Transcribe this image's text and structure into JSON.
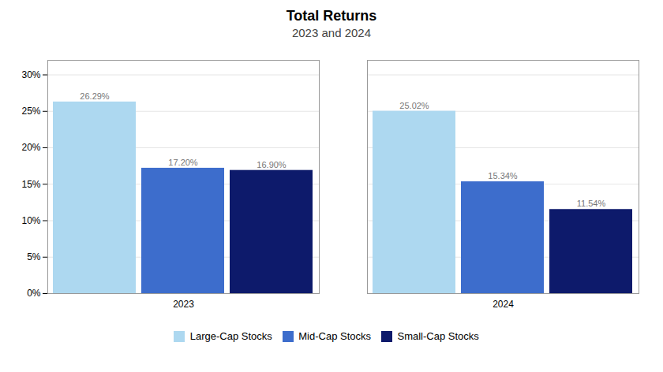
{
  "chart_data": {
    "type": "bar",
    "title": "Total Returns",
    "subtitle": "2023 and 2024",
    "categories": [
      "2023",
      "2024"
    ],
    "series": [
      {
        "name": "Large-Cap Stocks",
        "color": "#add8f0",
        "values": [
          26.29,
          25.02
        ],
        "value_labels": [
          "26.29%",
          "25.02%"
        ]
      },
      {
        "name": "Mid-Cap Stocks",
        "color": "#3d6dcc",
        "values": [
          17.2,
          15.34
        ],
        "value_labels": [
          "17.20%",
          "15.34%"
        ]
      },
      {
        "name": "Small-Cap Stocks",
        "color": "#0d1a6b",
        "values": [
          16.9,
          11.54
        ],
        "value_labels": [
          "16.90%",
          "11.54%"
        ]
      }
    ],
    "ylim": [
      0,
      32
    ],
    "yticks": [
      {
        "value": 0,
        "label": "0%"
      },
      {
        "value": 5,
        "label": "5%"
      },
      {
        "value": 10,
        "label": "10%"
      },
      {
        "value": 15,
        "label": "15%"
      },
      {
        "value": 20,
        "label": "20%"
      },
      {
        "value": 25,
        "label": "25%"
      },
      {
        "value": 30,
        "label": "30%"
      }
    ],
    "grid": true,
    "legend": "bottom",
    "data_labels": true
  }
}
